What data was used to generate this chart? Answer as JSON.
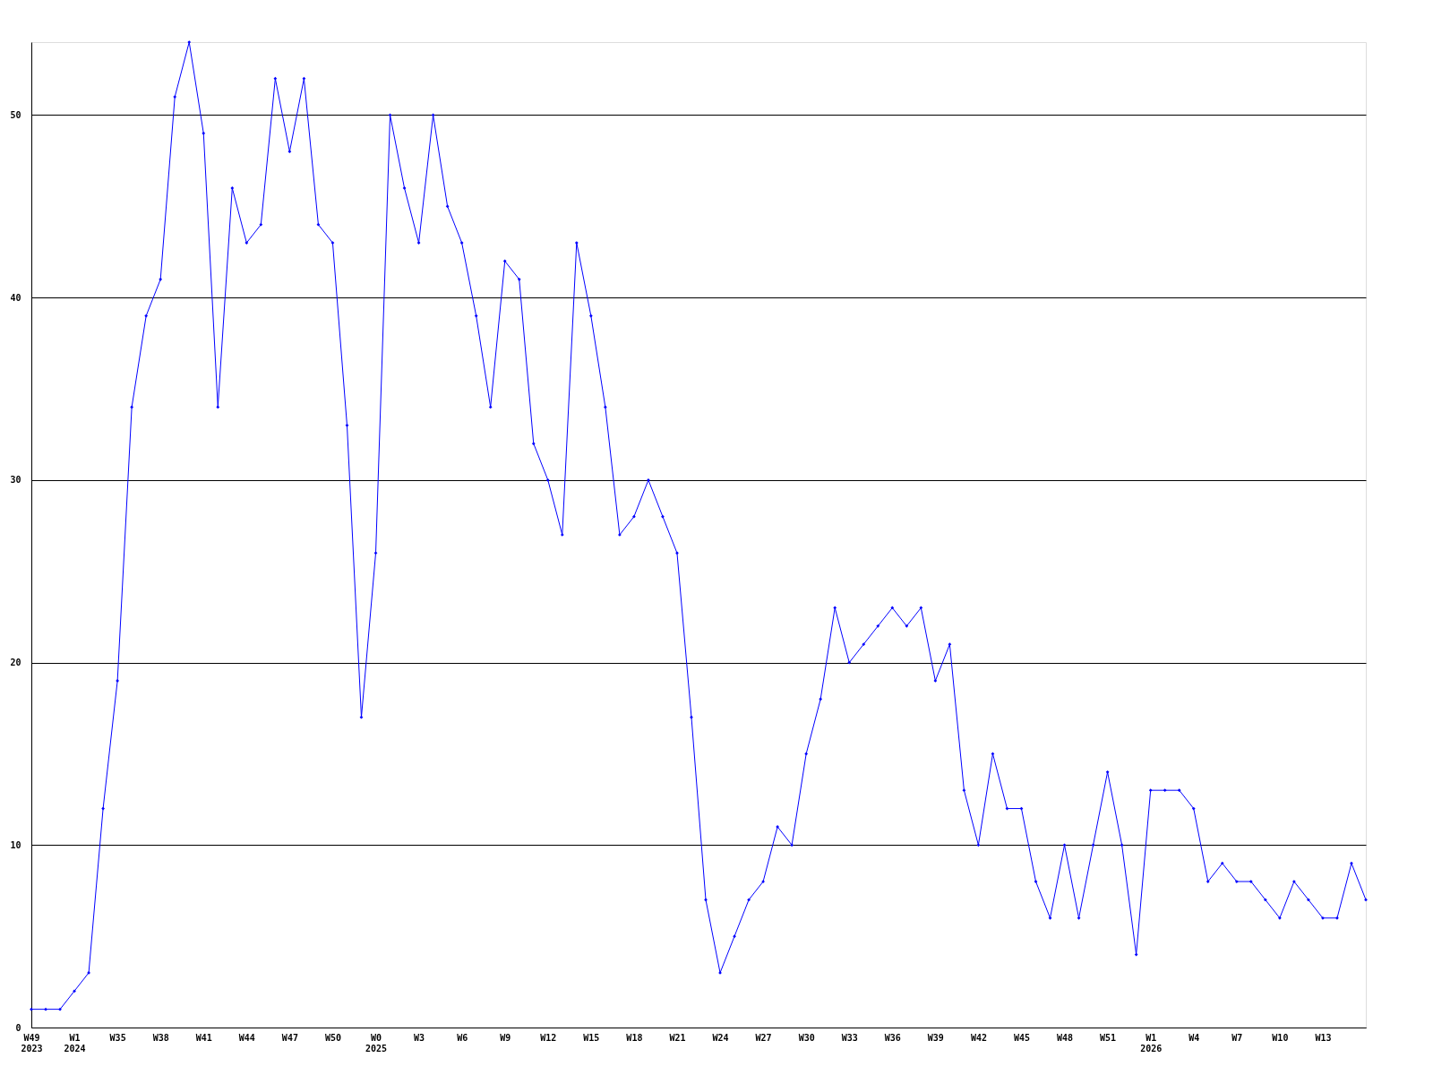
{
  "chart_data": {
    "type": "line",
    "categories": [
      "W49\n2023",
      null,
      null,
      "W1\n2024",
      null,
      null,
      "W35",
      null,
      null,
      "W38",
      null,
      null,
      "W41",
      null,
      null,
      "W44",
      null,
      null,
      "W47",
      null,
      null,
      "W50",
      null,
      null,
      "W0\n2025",
      null,
      null,
      "W3",
      null,
      null,
      "W6",
      null,
      null,
      "W9",
      null,
      null,
      "W12",
      null,
      null,
      "W15",
      null,
      null,
      "W18",
      null,
      null,
      "W21",
      null,
      null,
      "W24",
      null,
      null,
      "W27",
      null,
      null,
      "W30",
      null,
      null,
      "W33",
      null,
      null,
      "W36",
      null,
      null,
      "W39",
      null,
      null,
      "W42",
      null,
      null,
      "W45",
      null,
      null,
      "W48",
      null,
      null,
      "W51",
      null,
      null,
      "W1\n2026",
      null,
      null,
      "W4",
      null,
      null,
      "W7",
      null,
      null,
      "W10",
      null,
      null,
      "W13",
      null,
      null,
      null
    ],
    "series": [
      {
        "color": "#0000ff",
        "values": [
          1,
          1,
          1,
          2,
          3,
          12,
          19,
          34,
          39,
          41,
          51,
          54,
          49,
          34,
          46,
          43,
          44,
          52,
          48,
          52,
          44,
          43,
          33,
          17,
          26,
          50,
          46,
          43,
          50,
          45,
          43,
          39,
          34,
          42,
          41,
          32,
          30,
          27,
          43,
          39,
          34,
          27,
          28,
          30,
          28,
          26,
          17,
          7,
          3,
          5,
          7,
          8,
          11,
          10,
          15,
          18,
          23,
          20,
          21,
          22,
          23,
          22,
          23,
          19,
          21,
          13,
          10,
          15,
          12,
          12,
          8,
          6,
          10,
          6,
          10,
          14,
          10,
          4,
          13,
          13,
          13,
          12,
          8,
          9,
          8,
          8,
          7,
          6,
          8,
          7,
          6,
          6,
          9,
          7
        ]
      }
    ],
    "ylim": [
      0,
      54
    ],
    "yticks": [
      0,
      10,
      20,
      30,
      40,
      50
    ],
    "grid": "y",
    "marker": "diamond"
  }
}
